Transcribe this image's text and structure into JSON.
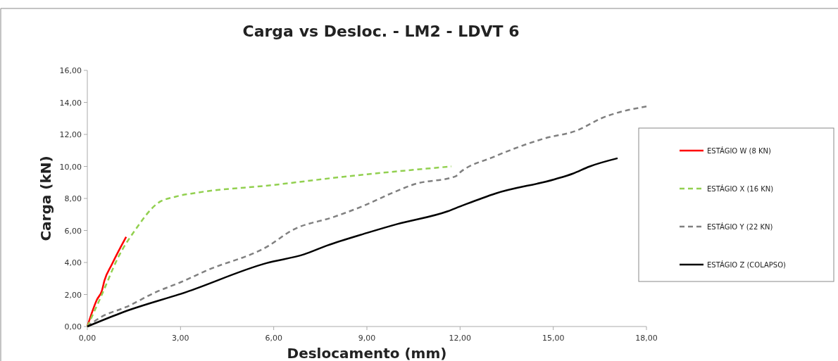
{
  "chart_data": {
    "type": "line",
    "title": "Carga vs Desloc. - LM2 - LDVT 6",
    "xlabel": "Deslocamento (mm)",
    "ylabel": "Carga (kN)",
    "xlim": [
      0,
      18
    ],
    "ylim": [
      0,
      16
    ],
    "xticks": [
      {
        "value": 0,
        "label": "0,00"
      },
      {
        "value": 3,
        "label": "3,00"
      },
      {
        "value": 6,
        "label": "6,00"
      },
      {
        "value": 9,
        "label": "9,00"
      },
      {
        "value": 12,
        "label": "12,00"
      },
      {
        "value": 15,
        "label": "15,00"
      },
      {
        "value": 18,
        "label": "18,00"
      }
    ],
    "yticks": [
      {
        "value": 0,
        "label": "0,00"
      },
      {
        "value": 2,
        "label": "2,00"
      },
      {
        "value": 4,
        "label": "4,00"
      },
      {
        "value": 6,
        "label": "6,00"
      },
      {
        "value": 8,
        "label": "8,00"
      },
      {
        "value": 10,
        "label": "10,00"
      },
      {
        "value": 12,
        "label": "12,00"
      },
      {
        "value": 14,
        "label": "14,00"
      },
      {
        "value": 16,
        "label": "16,00"
      }
    ],
    "grid": false,
    "legend": "right",
    "marker": "none",
    "series": [
      {
        "name": "ESTÁGIO W (8 KN)",
        "color": "#ff0000",
        "line_style": "solid",
        "x": [
          0,
          0.31,
          0.47,
          0.55,
          0.79,
          1.25
        ],
        "values": [
          0,
          1.68,
          2.24,
          2.86,
          3.88,
          5.6
        ]
      },
      {
        "name": "ESTÁGIO X (16 KN)",
        "color": "#92d050",
        "line_style": "dashed",
        "x": [
          0,
          0.47,
          1.0,
          1.56,
          2.25,
          2.86,
          3.5,
          5.93,
          8.36,
          11.72
        ],
        "values": [
          0,
          2.0,
          4.35,
          6.08,
          7.68,
          8.12,
          8.35,
          8.83,
          9.38,
          10.0
        ]
      },
      {
        "name": "ESTÁGIO Y (22 KN)",
        "color": "#808080",
        "line_style": "dashed",
        "x": [
          0,
          0.43,
          1.24,
          2.21,
          3.02,
          3.83,
          5.85,
          6.58,
          7.96,
          8.93,
          9.82,
          10.55,
          11.85,
          12.0,
          13.06,
          14.72,
          15.78,
          16.54,
          18.0
        ],
        "values": [
          0,
          0.58,
          1.21,
          2.15,
          2.78,
          3.49,
          5.06,
          6.0,
          6.86,
          7.57,
          8.35,
          8.9,
          9.38,
          9.63,
          10.58,
          11.75,
          12.26,
          13.0,
          13.75
        ]
      },
      {
        "name": "ESTÁGIO Z (COLAPSO)",
        "color": "#000000",
        "line_style": "solid",
        "x": [
          0,
          1.16,
          3.18,
          5.77,
          6.98,
          7.72,
          9.01,
          9.98,
          11.6,
          12.0,
          13.14,
          15.03,
          15.63,
          16.16,
          17.07
        ],
        "values": [
          0,
          0.9,
          2.15,
          3.96,
          4.51,
          5.06,
          5.85,
          6.4,
          7.2,
          7.5,
          8.31,
          9.19,
          9.55,
          9.99,
          10.51
        ]
      }
    ]
  }
}
